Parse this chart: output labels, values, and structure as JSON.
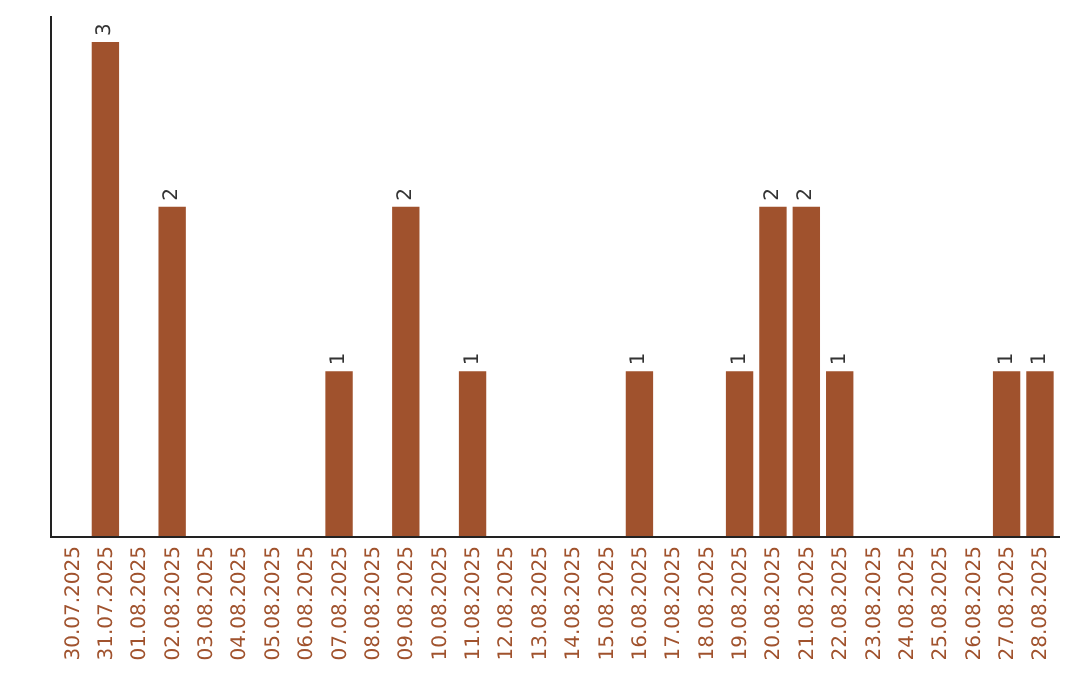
{
  "chart_data": {
    "type": "bar",
    "categories": [
      "30.07.2025",
      "31.07.2025",
      "01.08.2025",
      "02.08.2025",
      "03.08.2025",
      "04.08.2025",
      "05.08.2025",
      "06.08.2025",
      "07.08.2025",
      "08.08.2025",
      "09.08.2025",
      "10.08.2025",
      "11.08.2025",
      "12.08.2025",
      "13.08.2025",
      "14.08.2025",
      "15.08.2025",
      "16.08.2025",
      "17.08.2025",
      "18.08.2025",
      "19.08.2025",
      "20.08.2025",
      "21.08.2025",
      "22.08.2025",
      "23.08.2025",
      "24.08.2025",
      "25.08.2025",
      "26.08.2025",
      "27.08.2025",
      "28.08.2025"
    ],
    "values": [
      0,
      3,
      0,
      2,
      0,
      0,
      0,
      0,
      1,
      0,
      2,
      0,
      1,
      0,
      0,
      0,
      0,
      1,
      0,
      0,
      1,
      2,
      2,
      1,
      0,
      0,
      0,
      0,
      1,
      1
    ],
    "value_labels": [
      null,
      "3",
      null,
      "2",
      null,
      null,
      null,
      null,
      "1",
      null,
      "2",
      null,
      "1",
      null,
      null,
      null,
      null,
      "1",
      null,
      null,
      "1",
      "2",
      "2",
      "1",
      null,
      null,
      null,
      null,
      "1",
      "1"
    ],
    "color": "#a0522d",
    "tick_labels": "x"
  }
}
